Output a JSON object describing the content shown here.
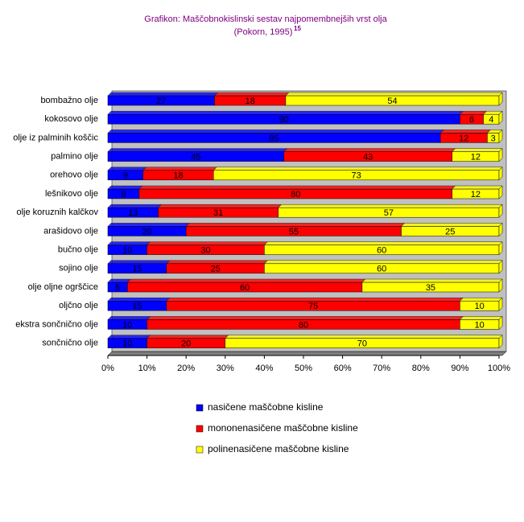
{
  "chart_data": {
    "type": "bar",
    "orientation": "horizontal",
    "stacked": "percent",
    "title": "Grafikon: Maščobnokislinski sestav najpomembnejših vrst olja",
    "subtitle": "(Pokorn, 1995)",
    "subtitle_ref": "15",
    "categories": [
      "bombažno olje",
      "kokosovo olje",
      "olje iz palminih koščic",
      "palmino olje",
      "orehovo olje",
      "lešnikovo olje",
      "olje koruznih kalčkov",
      "arašidovo olje",
      "bučno olje",
      "sojino olje",
      "olje oljne ogrščice",
      "oljčno olje",
      "ekstra sončnično olje",
      "sončnično olje"
    ],
    "series": [
      {
        "name": "nasičene maščobne kisline",
        "color": "#0000ff",
        "values": [
          27,
          90,
          85,
          45,
          9,
          8,
          13,
          20,
          10,
          15,
          5,
          15,
          10,
          10
        ]
      },
      {
        "name": "mononenasičene maščobne kisline",
        "color": "#ff0000",
        "values": [
          18,
          6,
          12,
          43,
          18,
          80,
          31,
          55,
          30,
          25,
          60,
          75,
          80,
          20
        ]
      },
      {
        "name": "polinenasičene maščobne kisline",
        "color": "#ffff00",
        "values": [
          54,
          4,
          3,
          12,
          73,
          12,
          57,
          25,
          60,
          60,
          35,
          10,
          10,
          70
        ]
      }
    ],
    "xlim": [
      0,
      100
    ],
    "xticks": [
      {
        "value": 0,
        "label": "0%"
      },
      {
        "value": 10,
        "label": "10%"
      },
      {
        "value": 20,
        "label": "20%"
      },
      {
        "value": 30,
        "label": "30%"
      },
      {
        "value": 40,
        "label": "40%"
      },
      {
        "value": 50,
        "label": "50%"
      },
      {
        "value": 60,
        "label": "60%"
      },
      {
        "value": 70,
        "label": "70%"
      },
      {
        "value": 80,
        "label": "80%"
      },
      {
        "value": 90,
        "label": "90%"
      },
      {
        "value": 100,
        "label": "100%"
      }
    ],
    "legend": "bottom"
  }
}
